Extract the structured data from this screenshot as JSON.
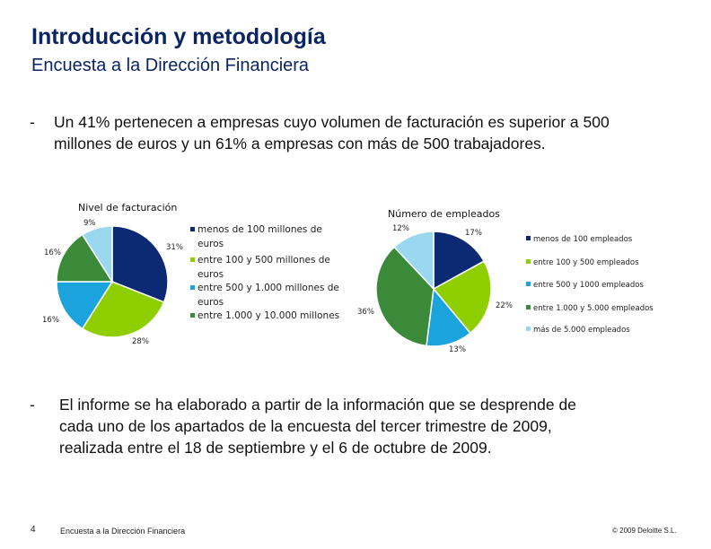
{
  "header": {
    "title": "Introducción y metodología",
    "subtitle": "Encuesta a la Dirección Financiera"
  },
  "bullets": [
    {
      "dash": "-",
      "lines": [
        "Un 41% pertenecen a empresas cuyo volumen de facturación es superior a 500",
        "millones de euros y un 61% a empresas con más de 500 trabajadores."
      ]
    },
    {
      "dash": "-",
      "lines": [
        "El informe se ha elaborado a partir de la información que se desprende de",
        "cada uno de los apartados de la encuesta del tercer trimestre de 2009,",
        "realizada entre el 18 de septiembre y el 6 de octubre de 2009."
      ]
    }
  ],
  "footer": {
    "page": "4",
    "name": "Encuesta a la Dirección Financiera",
    "copyright": "© 2009 Deloitte S.L."
  },
  "chart_data": [
    {
      "type": "pie",
      "title": "Nivel de facturación",
      "legend_position": "right",
      "slices": [
        {
          "label": "menos de 100 millones de euros",
          "legend_lines": [
            "menos de 100 millones de",
            "euros"
          ],
          "value": 31,
          "value_label": "31%",
          "color": "#0b2a73"
        },
        {
          "label": "entre 100 y 500 millones de euros",
          "legend_lines": [
            "entre 100 y 500 millones de",
            "euros"
          ],
          "value": 28,
          "value_label": "28%",
          "color": "#8fce00"
        },
        {
          "label": "entre 500 y 1.000 millones de euros",
          "legend_lines": [
            "entre 500 y 1.000 millones de",
            "euros"
          ],
          "value": 16,
          "value_label": "16%",
          "color": "#1aa3dc"
        },
        {
          "label": "entre 1.000 y 10.000 millones",
          "legend_lines": [
            "entre 1.000 y 10.000 millones"
          ],
          "value": 16,
          "value_label": "16%",
          "color": "#3b8a3a"
        },
        {
          "label": "",
          "legend_lines": [],
          "value": 9,
          "value_label": "9%",
          "color": "#99d8ef"
        }
      ]
    },
    {
      "type": "pie",
      "title": "Número de empleados",
      "legend_position": "right",
      "slices": [
        {
          "label": "menos de 100 empleados",
          "legend_lines": [
            "menos de 100 empleados"
          ],
          "value": 17,
          "value_label": "17%",
          "color": "#0b2a73"
        },
        {
          "label": "entre 100 y 500 empleados",
          "legend_lines": [
            "entre 100 y 500 empleados"
          ],
          "value": 22,
          "value_label": "22%",
          "color": "#8fce00"
        },
        {
          "label": "entre 500 y 1000 empleados",
          "legend_lines": [
            "entre 500 y 1000 empleados"
          ],
          "value": 13,
          "value_label": "13%",
          "color": "#1aa3dc"
        },
        {
          "label": "entre 1.000 y 5.000 empleados",
          "legend_lines": [
            "entre 1.000 y 5.000 empleados"
          ],
          "value": 36,
          "value_label": "36%",
          "color": "#3b8a3a"
        },
        {
          "label": "más de 5.000 empleados",
          "legend_lines": [
            "más de 5.000 empleados"
          ],
          "value": 12,
          "value_label": "12%",
          "color": "#99d8ef"
        }
      ]
    }
  ]
}
